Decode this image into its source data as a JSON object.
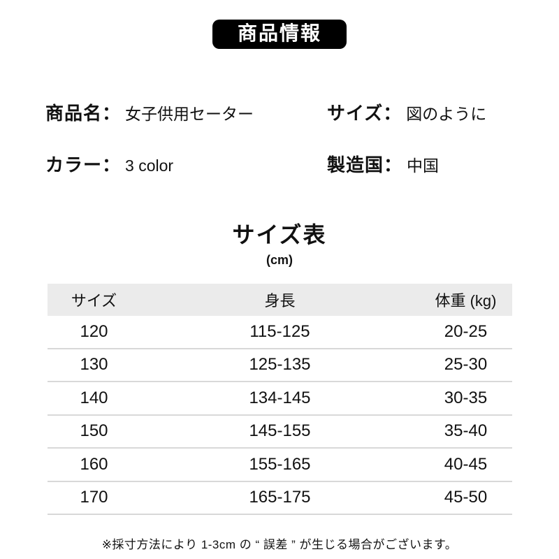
{
  "header": {
    "badge": "商品情報"
  },
  "info": {
    "product_label": "商品名：",
    "product_value": "女子供用セーター",
    "size_label": "サイズ：",
    "size_value": "図のように",
    "color_label": "カラー：",
    "color_value": "3 color",
    "origin_label": "製造国：",
    "origin_value": "中国"
  },
  "size_table": {
    "title": "サイズ表",
    "unit": "(cm)",
    "headers": [
      "サイズ",
      "身長",
      "体重 (kg)"
    ],
    "rows": [
      [
        "120",
        "115-125",
        "20-25"
      ],
      [
        "130",
        "125-135",
        "25-30"
      ],
      [
        "140",
        "134-145",
        "30-35"
      ],
      [
        "150",
        "145-155",
        "35-40"
      ],
      [
        "160",
        "155-165",
        "40-45"
      ],
      [
        "170",
        "165-175",
        "45-50"
      ]
    ]
  },
  "footer": {
    "note": "※採寸方法により 1-3cm の “ 誤差 ” が生じる場合がございます。"
  },
  "colors": {
    "badge_bg": "#000000",
    "badge_text": "#ffffff",
    "table_header_bg": "#ebebeb",
    "row_divider": "#d8d8d8",
    "text": "#111111"
  }
}
